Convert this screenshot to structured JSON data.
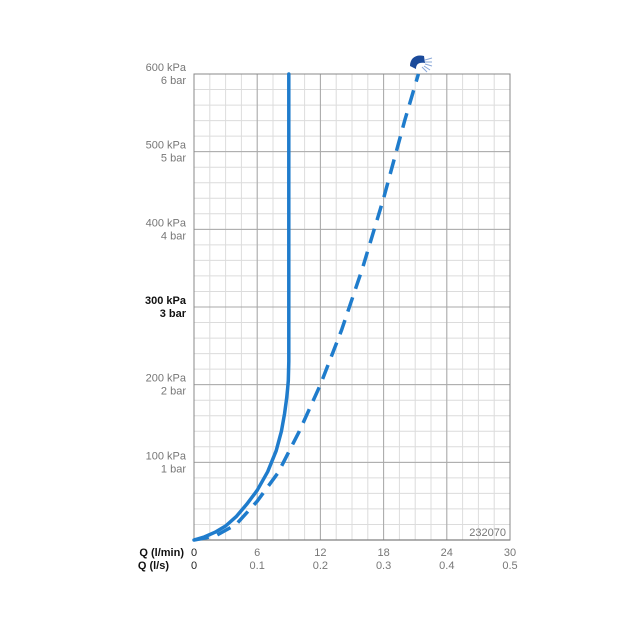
{
  "chart_data": {
    "type": "line",
    "code": "232070",
    "x_axis_labels": [
      "Q (l/min)",
      "Q (l/s)"
    ],
    "x_ticks_lmin": [
      "0",
      "6",
      "12",
      "18",
      "24",
      "30"
    ],
    "x_ticks_ls": [
      "0",
      "0.1",
      "0.2",
      "0.3",
      "0.4",
      "0.5"
    ],
    "x_values_lmin": [
      0,
      6,
      12,
      18,
      24,
      30
    ],
    "xlim": [
      0,
      30
    ],
    "y_ticks": [
      {
        "value": 100,
        "kpa": "100 kPa",
        "bar": "1 bar",
        "bold": false
      },
      {
        "value": 200,
        "kpa": "200 kPa",
        "bar": "2 bar",
        "bold": false
      },
      {
        "value": 300,
        "kpa": "300 kPa",
        "bar": "3 bar",
        "bold": true
      },
      {
        "value": 400,
        "kpa": "400 kPa",
        "bar": "4 bar",
        "bold": false
      },
      {
        "value": 500,
        "kpa": "500 kPa",
        "bar": "5 bar",
        "bold": false
      },
      {
        "value": 600,
        "kpa": "600 kPa",
        "bar": "6 bar",
        "bold": false
      }
    ],
    "ylim": [
      0,
      600
    ],
    "grid": true,
    "series": [
      {
        "style": "solid",
        "color": "#1f7ccc",
        "x": [
          0,
          1,
          2,
          3,
          4,
          5,
          6,
          7,
          7.8,
          8.3,
          8.6,
          8.8,
          8.9,
          8.95,
          9.0,
          9.0,
          9.0
        ],
        "y": [
          0,
          4,
          10,
          18,
          30,
          46,
          64,
          88,
          115,
          140,
          163,
          183,
          196,
          205,
          230,
          400,
          600
        ]
      },
      {
        "style": "dashed",
        "color": "#1f7ccc",
        "x": [
          0,
          2,
          4,
          6,
          8,
          10,
          12,
          14,
          16,
          18,
          20,
          21.3
        ],
        "y": [
          0,
          5,
          20,
          50,
          87,
          140,
          200,
          270,
          350,
          440,
          540,
          600
        ]
      }
    ],
    "icon": "shower-head-icon"
  }
}
